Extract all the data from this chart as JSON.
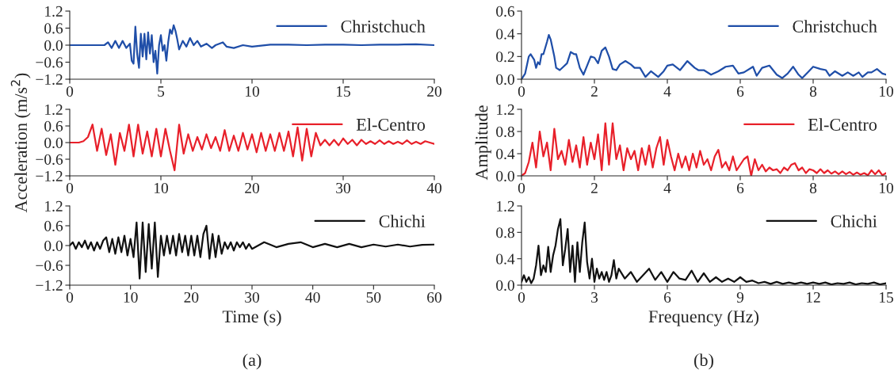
{
  "chart_data": [
    {
      "type": "line",
      "xlim": [
        0,
        20
      ],
      "xticks": [
        0,
        5,
        10,
        15,
        20
      ],
      "ylim": [
        -1.2,
        1.2
      ],
      "yticks": [
        {
          "value": -1.2,
          "label": "−1.2"
        },
        {
          "value": -0.6,
          "label": "−0.6"
        },
        {
          "value": 0,
          "label": "0.0"
        },
        0.6,
        1.2
      ],
      "legend": "top right",
      "grid": false,
      "series": [
        {
          "name": "Christchuch",
          "color": "#1f4ea8",
          "x": [
            0,
            1,
            1.9,
            2.1,
            2.3,
            2.5,
            2.7,
            2.9,
            3.1,
            3.3,
            3.4,
            3.5,
            3.6,
            3.7,
            3.8,
            3.9,
            4.0,
            4.1,
            4.2,
            4.3,
            4.4,
            4.5,
            4.6,
            4.7,
            4.8,
            4.9,
            5.0,
            5.1,
            5.2,
            5.3,
            5.4,
            5.5,
            5.6,
            5.7,
            5.8,
            5.9,
            6.0,
            6.2,
            6.4,
            6.6,
            6.8,
            7.0,
            7.2,
            7.5,
            7.8,
            8.0,
            8.4,
            8.6,
            9.0,
            9.5,
            10,
            11,
            12,
            13,
            14,
            15,
            16,
            17,
            18,
            19,
            20
          ],
          "values": [
            0,
            0,
            0,
            0.1,
            -0.1,
            0.15,
            -0.1,
            0.15,
            -0.1,
            0.05,
            -0.55,
            -0.65,
            0.65,
            -0.3,
            -0.8,
            0.4,
            -0.4,
            0.4,
            -0.5,
            0.45,
            -0.3,
            0.35,
            -0.6,
            -0.2,
            -1.0,
            0.0,
            0.35,
            -0.2,
            0.0,
            -0.55,
            0.1,
            0.55,
            0.4,
            0.7,
            0.5,
            0.2,
            -0.15,
            0.15,
            -0.05,
            0.25,
            0.0,
            0.15,
            -0.05,
            0.05,
            -0.1,
            0.0,
            0.1,
            -0.05,
            -0.1,
            0.0,
            -0.05,
            0.02,
            0.02,
            0.0,
            0.02,
            0.02,
            0.0,
            0.02,
            0.02,
            0.03,
            0.0
          ]
        }
      ]
    },
    {
      "type": "line",
      "xlim": [
        0,
        40
      ],
      "xticks": [
        0,
        10,
        20,
        30,
        40
      ],
      "ylim": [
        -1.2,
        1.2
      ],
      "yticks": [
        {
          "value": -1.2,
          "label": "−1.2"
        },
        {
          "value": -0.6,
          "label": "−0.6"
        },
        {
          "value": 0,
          "label": "0.0"
        },
        0.6,
        1.2
      ],
      "legend": "top right",
      "grid": false,
      "ylabel": "Acceleration (m/s$^{2}$)",
      "series": [
        {
          "name": "El-Centro",
          "color": "#e8202a",
          "x": [
            0,
            0.5,
            1,
            1.5,
            2,
            2.5,
            3,
            3.5,
            4,
            4.5,
            5,
            5.5,
            6,
            6.5,
            7,
            7.5,
            8,
            8.5,
            9,
            9.5,
            10,
            10.5,
            11,
            11.5,
            12,
            12.5,
            13,
            13.5,
            14,
            14.5,
            15,
            15.5,
            16,
            16.5,
            17,
            17.5,
            18,
            18.5,
            19,
            19.5,
            20,
            20.5,
            21,
            21.5,
            22,
            22.5,
            23,
            23.5,
            24,
            24.5,
            25,
            25.5,
            26,
            26.5,
            27,
            27.5,
            28,
            28.5,
            29,
            29.5,
            30,
            30.5,
            31,
            31.5,
            32,
            32.5,
            33,
            33.5,
            34,
            34.5,
            35,
            35.5,
            36,
            36.5,
            37,
            37.5,
            38,
            38.5,
            39,
            39.5,
            40
          ],
          "values": [
            0,
            0,
            0,
            0.05,
            0.2,
            0.65,
            -0.3,
            0.5,
            -0.45,
            0.3,
            -0.8,
            0.35,
            -0.3,
            0.65,
            -0.5,
            0.65,
            -0.4,
            0.4,
            -0.5,
            0.5,
            -0.5,
            0.5,
            -0.3,
            -1.0,
            0.65,
            -0.4,
            0.3,
            -0.3,
            0.2,
            -0.25,
            0.3,
            -0.2,
            0.2,
            -0.3,
            0.45,
            -0.3,
            0.25,
            -0.3,
            0.35,
            -0.25,
            0.3,
            -0.35,
            0.35,
            -0.3,
            0.3,
            -0.3,
            0.35,
            -0.3,
            0.4,
            -0.5,
            0.55,
            -0.65,
            0.5,
            -0.5,
            0.35,
            -0.1,
            0.1,
            -0.1,
            0.1,
            -0.1,
            0.15,
            -0.05,
            0.1,
            -0.1,
            0.1,
            -0.05,
            0.05,
            -0.05,
            0.08,
            -0.05,
            0.05,
            -0.05,
            0.03,
            -0.05,
            0.08,
            -0.05,
            0.03,
            -0.05,
            0.05,
            0.0,
            -0.05
          ]
        }
      ]
    },
    {
      "type": "line",
      "xlim": [
        0,
        60
      ],
      "xticks": [
        0,
        10,
        20,
        30,
        40,
        50,
        60
      ],
      "ylim": [
        -1.2,
        1.2
      ],
      "yticks": [
        {
          "value": -1.2,
          "label": "−1.2"
        },
        {
          "value": -0.6,
          "label": "−0.6"
        },
        {
          "value": 0,
          "label": "0.0"
        },
        0.6,
        1.2
      ],
      "legend": "top right",
      "grid": false,
      "xlabel": "Time (s)",
      "annotations": [
        "(a)"
      ],
      "series": [
        {
          "name": "Chichi",
          "color": "#111111",
          "x": [
            0,
            0.5,
            1,
            1.5,
            2,
            2.5,
            3,
            3.5,
            4,
            4.5,
            5,
            5.5,
            6,
            6.5,
            7,
            7.5,
            8,
            8.5,
            9,
            9.5,
            10,
            10.5,
            11,
            11.5,
            12,
            12.5,
            13,
            13.5,
            14,
            14.5,
            15,
            15.5,
            16,
            16.5,
            17,
            17.5,
            18,
            18.5,
            19,
            19.5,
            20,
            20.5,
            21,
            21.5,
            22,
            22.5,
            23,
            23.5,
            24,
            24.5,
            25,
            25.5,
            26,
            26.5,
            27,
            27.5,
            28,
            28.5,
            29,
            29.5,
            30,
            32,
            34,
            36,
            38,
            40,
            42,
            44,
            46,
            48,
            50,
            52,
            54,
            56,
            58,
            60
          ],
          "values": [
            0,
            0.1,
            -0.1,
            0.1,
            -0.05,
            0.15,
            -0.1,
            0.1,
            -0.15,
            0.1,
            -0.1,
            0.15,
            0.25,
            -0.2,
            0.2,
            -0.25,
            0.25,
            -0.2,
            0.3,
            -0.3,
            0.2,
            -0.35,
            0.7,
            -1.0,
            0.7,
            -0.8,
            0.65,
            -0.7,
            0.7,
            -0.95,
            0.3,
            -0.3,
            0.3,
            -0.25,
            0.3,
            -0.3,
            0.35,
            -0.2,
            0.3,
            -0.3,
            0.3,
            -0.3,
            0.3,
            -0.35,
            0.35,
            0.6,
            -0.4,
            0.35,
            -0.35,
            0.3,
            -0.25,
            0.1,
            -0.1,
            0.1,
            -0.15,
            0.1,
            -0.05,
            0.1,
            -0.1,
            0.05,
            -0.1,
            0.1,
            -0.05,
            0.05,
            0.1,
            -0.05,
            0.05,
            -0.05,
            0.05,
            -0.05,
            0.03,
            -0.03,
            0.03,
            -0.03,
            0.02,
            0.03
          ]
        }
      ]
    },
    {
      "type": "line",
      "xlim": [
        0,
        10
      ],
      "xticks": [
        0,
        2,
        4,
        6,
        8,
        10
      ],
      "ylim": [
        0,
        0.6
      ],
      "yticks": [
        {
          "value": 0,
          "label": "0.0"
        },
        0.2,
        0.4,
        0.6
      ],
      "legend": "top right",
      "grid": false,
      "series": [
        {
          "name": "Christchuch",
          "color": "#1f4ea8",
          "x": [
            0,
            0.1,
            0.2,
            0.25,
            0.35,
            0.4,
            0.45,
            0.5,
            0.55,
            0.6,
            0.7,
            0.75,
            0.8,
            0.9,
            0.95,
            1.05,
            1.15,
            1.25,
            1.35,
            1.45,
            1.5,
            1.6,
            1.7,
            1.8,
            1.9,
            2.0,
            2.1,
            2.2,
            2.3,
            2.4,
            2.5,
            2.6,
            2.7,
            2.85,
            3.0,
            3.1,
            3.25,
            3.4,
            3.55,
            3.75,
            3.9,
            4.0,
            4.15,
            4.35,
            4.55,
            4.75,
            4.85,
            5.0,
            5.2,
            5.4,
            5.6,
            5.8,
            5.95,
            6.1,
            6.35,
            6.45,
            6.6,
            6.8,
            7.0,
            7.15,
            7.3,
            7.45,
            7.6,
            7.7,
            7.85,
            8.0,
            8.2,
            8.35,
            8.45,
            8.6,
            8.8,
            8.95,
            9.1,
            9.25,
            9.35,
            9.5,
            9.6,
            9.75,
            9.9,
            10.0
          ],
          "values": [
            0,
            0.05,
            0.2,
            0.22,
            0.17,
            0.1,
            0.15,
            0.13,
            0.22,
            0.22,
            0.33,
            0.39,
            0.35,
            0.2,
            0.1,
            0.08,
            0.11,
            0.14,
            0.24,
            0.22,
            0.22,
            0.1,
            0.04,
            0.12,
            0.2,
            0.19,
            0.14,
            0.25,
            0.28,
            0.2,
            0.09,
            0.08,
            0.13,
            0.16,
            0.13,
            0.1,
            0.1,
            0.02,
            0.07,
            0.02,
            0.07,
            0.12,
            0.13,
            0.08,
            0.16,
            0.1,
            0.08,
            0.08,
            0.04,
            0.07,
            0.11,
            0.12,
            0.05,
            0.06,
            0.11,
            0.03,
            0.1,
            0.12,
            0.04,
            0.01,
            0.05,
            0.11,
            0.04,
            0.01,
            0.06,
            0.11,
            0.09,
            0.08,
            0.03,
            0.07,
            0.03,
            0.06,
            0.03,
            0.06,
            0.02,
            0.06,
            0.06,
            0.09,
            0.05,
            0.04
          ]
        }
      ]
    },
    {
      "type": "line",
      "xlim": [
        0,
        10
      ],
      "xticks": [
        0,
        2,
        4,
        6,
        8,
        10
      ],
      "ylim": [
        0,
        1.2
      ],
      "yticks": [
        {
          "value": 0,
          "label": "0.0"
        },
        0.4,
        0.8,
        1.2
      ],
      "legend": "top right",
      "grid": false,
      "ylabel": "Amplitude",
      "series": [
        {
          "name": "El-Centro",
          "color": "#e8202a",
          "x": [
            0,
            0.1,
            0.2,
            0.3,
            0.4,
            0.5,
            0.6,
            0.7,
            0.8,
            0.9,
            1.0,
            1.1,
            1.2,
            1.3,
            1.4,
            1.5,
            1.6,
            1.7,
            1.8,
            1.9,
            2.0,
            2.1,
            2.2,
            2.3,
            2.4,
            2.5,
            2.6,
            2.7,
            2.8,
            2.9,
            3.0,
            3.1,
            3.2,
            3.3,
            3.4,
            3.5,
            3.6,
            3.7,
            3.8,
            3.9,
            4.0,
            4.1,
            4.2,
            4.3,
            4.4,
            4.5,
            4.6,
            4.7,
            4.8,
            4.9,
            5.0,
            5.1,
            5.2,
            5.3,
            5.4,
            5.5,
            5.6,
            5.7,
            5.8,
            5.9,
            6.0,
            6.1,
            6.2,
            6.3,
            6.4,
            6.5,
            6.6,
            6.7,
            6.8,
            6.9,
            7.0,
            7.1,
            7.2,
            7.3,
            7.4,
            7.5,
            7.6,
            7.7,
            7.8,
            7.9,
            8.0,
            8.1,
            8.2,
            8.3,
            8.4,
            8.5,
            8.6,
            8.7,
            8.8,
            8.9,
            9.0,
            9.1,
            9.2,
            9.3,
            9.4,
            9.5,
            9.6,
            9.7,
            9.8,
            9.9,
            10.0
          ],
          "values": [
            0,
            0.05,
            0.25,
            0.6,
            0.15,
            0.8,
            0.35,
            0.6,
            0.1,
            0.85,
            0.3,
            0.45,
            0.2,
            0.65,
            0.25,
            0.55,
            0.15,
            0.7,
            0.2,
            0.6,
            0.3,
            0.75,
            0.1,
            0.95,
            0.2,
            0.95,
            0.3,
            0.55,
            0.1,
            0.5,
            0.3,
            0.45,
            0.1,
            0.5,
            0.2,
            0.55,
            0.15,
            0.5,
            0.7,
            0.2,
            0.65,
            0.35,
            0.1,
            0.4,
            0.15,
            0.35,
            0.1,
            0.4,
            0.15,
            0.45,
            0.2,
            0.3,
            0.1,
            0.35,
            0.47,
            0.15,
            0.25,
            0.1,
            0.35,
            0.1,
            0.2,
            0.3,
            0.35,
            0.0,
            0.3,
            0.1,
            0.2,
            0.08,
            0.15,
            0.1,
            0.12,
            0.05,
            0.15,
            0.1,
            0.2,
            0.23,
            0.1,
            0.15,
            0.05,
            0.12,
            0.1,
            0.05,
            0.12,
            0.05,
            0.1,
            0.04,
            0.08,
            0.03,
            0.08,
            0.03,
            0.07,
            0.02,
            0.06,
            0.02,
            0.05,
            0.01,
            0.1,
            0.03,
            0.1,
            0.01,
            0.05
          ]
        }
      ]
    },
    {
      "type": "line",
      "xlim": [
        0,
        15
      ],
      "xticks": [
        0,
        3,
        6,
        9,
        12,
        15
      ],
      "ylim": [
        0,
        1.2
      ],
      "yticks": [
        {
          "value": 0,
          "label": "0.0"
        },
        0.4,
        0.8,
        1.2
      ],
      "legend": "top right",
      "grid": false,
      "xlabel": "Frequency (Hz)",
      "annotations": [
        "(b)"
      ],
      "series": [
        {
          "name": "Chichi",
          "color": "#111111",
          "x": [
            0,
            0.1,
            0.2,
            0.3,
            0.4,
            0.5,
            0.6,
            0.7,
            0.8,
            0.9,
            1.0,
            1.1,
            1.2,
            1.3,
            1.4,
            1.5,
            1.6,
            1.7,
            1.8,
            1.9,
            2.0,
            2.1,
            2.2,
            2.3,
            2.4,
            2.5,
            2.6,
            2.7,
            2.8,
            2.9,
            3.0,
            3.1,
            3.2,
            3.3,
            3.4,
            3.5,
            3.6,
            3.7,
            3.8,
            3.9,
            4.0,
            4.25,
            4.5,
            4.75,
            5.0,
            5.25,
            5.5,
            5.75,
            6.0,
            6.25,
            6.5,
            6.75,
            7.0,
            7.25,
            7.5,
            7.75,
            8.0,
            8.25,
            8.5,
            8.75,
            9.0,
            9.25,
            9.5,
            9.75,
            10.0,
            10.25,
            10.5,
            10.75,
            11.0,
            11.25,
            11.5,
            11.75,
            12.0,
            12.25,
            12.5,
            12.75,
            13.0,
            13.25,
            13.5,
            13.75,
            14.0,
            14.25,
            14.5,
            14.75,
            15.0
          ],
          "values": [
            0.05,
            0.15,
            0.05,
            0.12,
            0.03,
            0.1,
            0.3,
            0.6,
            0.15,
            0.3,
            0.2,
            0.58,
            0.2,
            0.45,
            0.6,
            0.85,
            1.0,
            0.3,
            0.55,
            0.85,
            0.2,
            0.6,
            0.05,
            0.65,
            0.2,
            0.65,
            0.95,
            0.35,
            0.1,
            0.4,
            0.05,
            0.25,
            0.1,
            0.2,
            0.08,
            0.2,
            0.05,
            0.15,
            0.38,
            0.1,
            0.25,
            0.1,
            0.2,
            0.05,
            0.15,
            0.25,
            0.08,
            0.2,
            0.05,
            0.2,
            0.1,
            0.08,
            0.22,
            0.05,
            0.18,
            0.05,
            0.12,
            0.05,
            0.1,
            0.05,
            0.12,
            0.05,
            0.07,
            0.03,
            0.05,
            0.02,
            0.05,
            0.02,
            0.04,
            0.02,
            0.04,
            0.02,
            0.04,
            0.02,
            0.04,
            0.01,
            0.03,
            0.02,
            0.04,
            0.01,
            0.03,
            0.02,
            0.04,
            0.01,
            0.03
          ]
        }
      ]
    }
  ]
}
